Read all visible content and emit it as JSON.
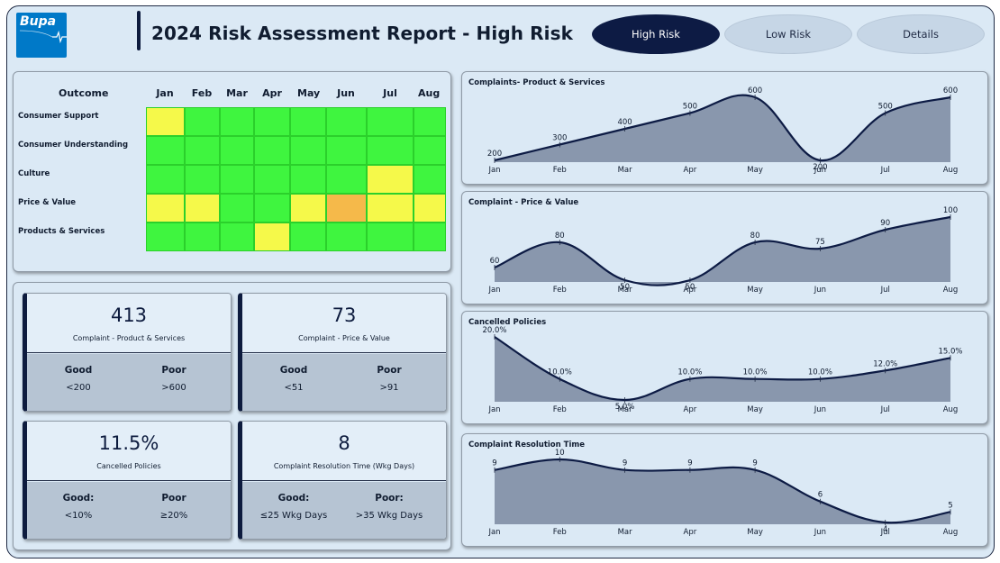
{
  "header": {
    "logo_text": "Bupa",
    "title": "2024 Risk Assessment Report - High Risk"
  },
  "nav": {
    "high_risk": "High Risk",
    "low_risk": "Low Risk",
    "details": "Details"
  },
  "colors": {
    "green": "#3ff53f",
    "yellow": "#f5f94a",
    "orange": "#f5b94a",
    "navy": "#0d1b44",
    "area_fill": "#8997ad"
  },
  "heatmap": {
    "outcome_header": "Outcome",
    "months": [
      "Jan",
      "Feb",
      "Mar",
      "Apr",
      "May",
      "Jun",
      "Jul",
      "Aug"
    ],
    "rows": [
      {
        "label": "Consumer Support",
        "statuses": [
          "yellow",
          "green",
          "green",
          "green",
          "green",
          "green",
          "green",
          "green"
        ]
      },
      {
        "label": "Consumer Understanding",
        "statuses": [
          "green",
          "green",
          "green",
          "green",
          "green",
          "green",
          "green",
          "green"
        ]
      },
      {
        "label": "Culture",
        "statuses": [
          "green",
          "green",
          "green",
          "green",
          "green",
          "green",
          "yellow",
          "green"
        ]
      },
      {
        "label": "Price & Value",
        "statuses": [
          "yellow",
          "yellow",
          "green",
          "green",
          "yellow",
          "orange",
          "yellow",
          "yellow"
        ]
      },
      {
        "label": "Products & Services",
        "statuses": [
          "green",
          "green",
          "green",
          "yellow",
          "green",
          "green",
          "green",
          "green"
        ]
      }
    ]
  },
  "kpis": [
    {
      "value": "413",
      "label": "Complaint - Product & Services",
      "good_header": "Good",
      "good_value": "<200",
      "poor_header": "Poor",
      "poor_value": ">600"
    },
    {
      "value": "73",
      "label": "Complaint - Price & Value",
      "good_header": "Good",
      "good_value": "<51",
      "poor_header": "Poor",
      "poor_value": ">91"
    },
    {
      "value": "11.5%",
      "label": "Cancelled Policies",
      "good_header": "Good:",
      "good_value": "<10%",
      "poor_header": "Poor",
      "poor_value": "≥20%"
    },
    {
      "value": "8",
      "label": "Complaint Resolution Time (Wkg Days)",
      "good_header": "Good:",
      "good_value": "≤25 Wkg Days",
      "poor_header": "Poor:",
      "poor_value": ">35 Wkg Days"
    }
  ],
  "chart_data": [
    {
      "type": "area",
      "title": "Complaints- Product & Services",
      "categories": [
        "Jan",
        "Feb",
        "Mar",
        "Apr",
        "May",
        "Jun",
        "Jul",
        "Aug"
      ],
      "values": [
        200,
        300,
        400,
        500,
        600,
        200,
        500,
        600
      ],
      "labels": [
        "200",
        "300",
        "400",
        "500",
        "600",
        "200",
        "500",
        "600"
      ],
      "ylim": [
        200,
        600
      ]
    },
    {
      "type": "area",
      "title": "Complaint - Price & Value",
      "categories": [
        "Jan",
        "Feb",
        "Mar",
        "Apr",
        "May",
        "Jun",
        "Jul",
        "Aug"
      ],
      "values": [
        60,
        80,
        50,
        50,
        80,
        75,
        90,
        100
      ],
      "labels": [
        "60",
        "80",
        "50",
        "50",
        "80",
        "75",
        "90",
        "100"
      ],
      "ylim": [
        50,
        100
      ]
    },
    {
      "type": "area",
      "title": "Cancelled Policies",
      "categories": [
        "Jan",
        "Feb",
        "Mar",
        "Apr",
        "May",
        "Jun",
        "Jul",
        "Aug"
      ],
      "values": [
        20,
        10,
        5,
        10,
        10,
        10,
        12,
        15
      ],
      "labels": [
        "20.0%",
        "10.0%",
        "5.0%",
        "10.0%",
        "10.0%",
        "10.0%",
        "12.0%",
        "15.0%"
      ],
      "ylim": [
        5,
        20
      ]
    },
    {
      "type": "area",
      "title": "Complaint Resolution Time",
      "categories": [
        "Jan",
        "Feb",
        "Mar",
        "Apr",
        "May",
        "Jun",
        "Jul",
        "Aug"
      ],
      "values": [
        9,
        10,
        9,
        9,
        9,
        6,
        4,
        5
      ],
      "labels": [
        "9",
        "10",
        "9",
        "9",
        "9",
        "6",
        "4",
        "5"
      ],
      "ylim": [
        4,
        10
      ]
    }
  ]
}
